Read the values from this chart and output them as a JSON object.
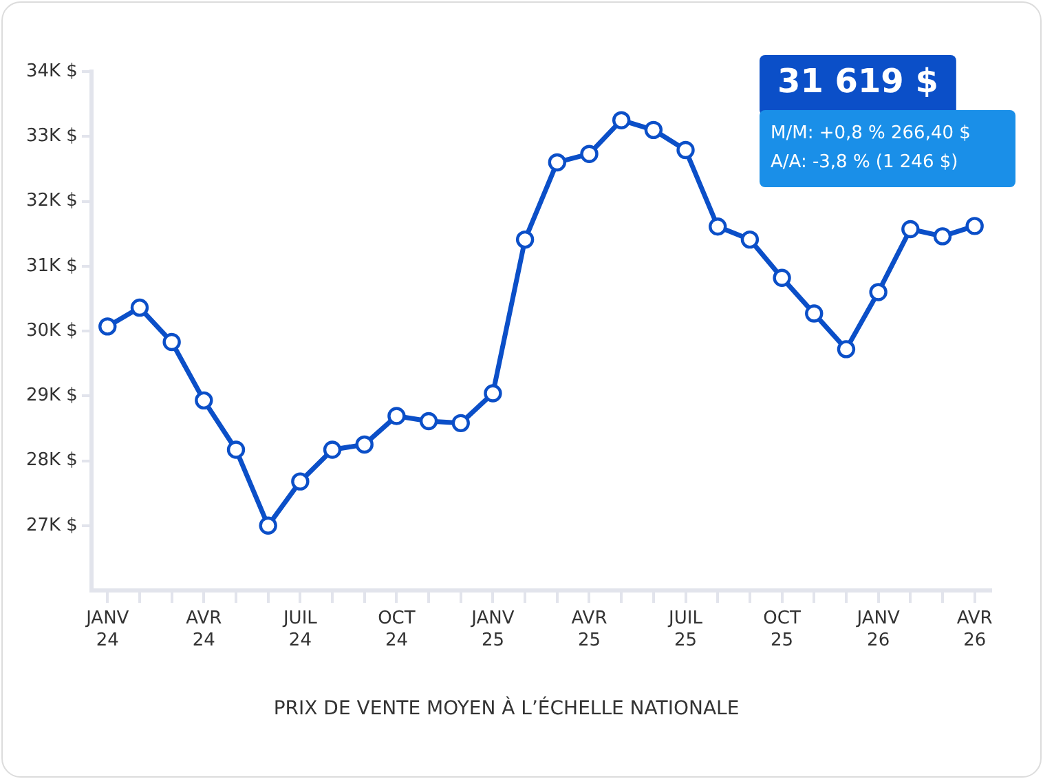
{
  "chart_data": {
    "type": "line",
    "title": "PRIX DE VENTE MOYEN À L’ÉCHELLE NATIONALE",
    "categories": [
      "JANV 24",
      null,
      null,
      "AVR 24",
      null,
      null,
      "JUIL 24",
      null,
      null,
      "OCT 24",
      null,
      null,
      "JANV 25",
      null,
      null,
      "AVR 25",
      null,
      null,
      "JUIL 25",
      null,
      null,
      "OCT 25",
      null,
      null,
      "JANV 26",
      null,
      null,
      "AVR 26"
    ],
    "series": [
      {
        "color": "#0b4fc8",
        "values": [
          30070,
          30360,
          29830,
          28930,
          28170,
          27000,
          27680,
          28170,
          28250,
          28690,
          28610,
          28580,
          29040,
          31410,
          32600,
          32730,
          33250,
          33100,
          32790,
          31610,
          31410,
          30820,
          30270,
          29720,
          30600,
          31570,
          31460,
          31619
        ]
      }
    ],
    "ylim": [
      26000,
      34000
    ],
    "yticks": [
      {
        "value": 27000,
        "label": "27K $"
      },
      {
        "value": 28000,
        "label": "28K $"
      },
      {
        "value": 29000,
        "label": "29K $"
      },
      {
        "value": 30000,
        "label": "30K $"
      },
      {
        "value": 31000,
        "label": "31K $"
      },
      {
        "value": 32000,
        "label": "32K $"
      },
      {
        "value": 33000,
        "label": "33K $"
      },
      {
        "value": 34000,
        "label": "34K $"
      }
    ],
    "grid": false,
    "legend": false,
    "marker": "circle",
    "line_style": "solid",
    "annotations": [
      "31 619 $",
      "M/M: +0,8 % 266,40 $",
      "A/A: -3,8 % (1 246 $)"
    ]
  }
}
